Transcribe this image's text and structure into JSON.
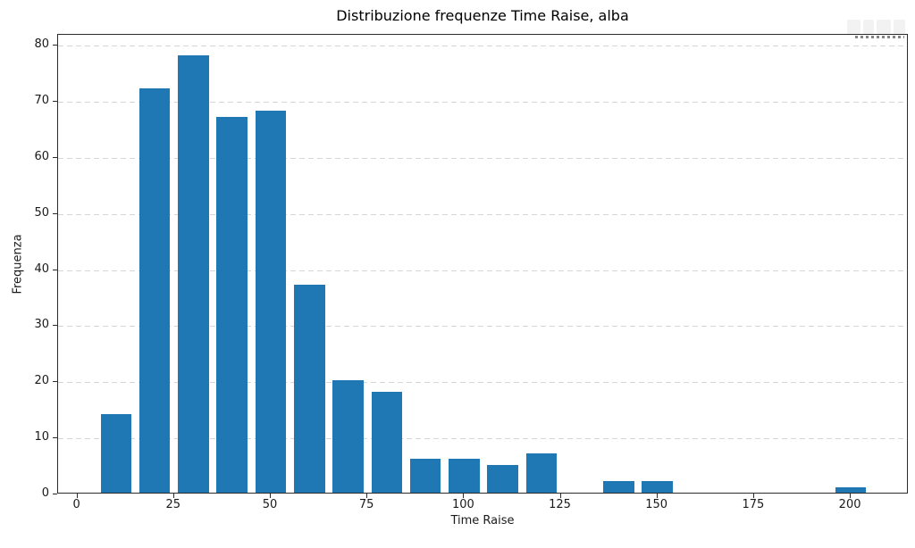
{
  "chart_data": {
    "type": "bar",
    "subtype": "histogram",
    "title": "Distribuzione frequenze Time Raise, alba",
    "xlabel": "Time Raise",
    "ylabel": "Frequenza",
    "bin_centers": [
      10,
      20,
      30,
      40,
      50,
      60,
      70,
      80,
      90,
      100,
      110,
      120,
      130,
      140,
      150,
      160,
      170,
      180,
      190,
      200
    ],
    "bin_edges": [
      5,
      15,
      25,
      35,
      45,
      55,
      65,
      75,
      85,
      95,
      105,
      115,
      125,
      135,
      145,
      155,
      165,
      175,
      185,
      195,
      205
    ],
    "values": [
      14,
      72,
      78,
      67,
      68,
      37,
      20,
      18,
      6,
      6,
      5,
      7,
      0,
      2,
      2,
      0,
      0,
      0,
      0,
      1
    ],
    "bar_display_width": 8,
    "x_ticks": [
      0,
      25,
      50,
      75,
      100,
      125,
      150,
      175,
      200
    ],
    "y_ticks": [
      0,
      10,
      20,
      30,
      40,
      50,
      60,
      70,
      80
    ],
    "xlim": [
      -5,
      215
    ],
    "ylim": [
      0,
      81.9
    ],
    "grid": "horizontal-dashed",
    "legend": "none",
    "bar_color": "#1f77b4",
    "grid_color": "#d6d6d6",
    "spine_color": "#2b2b2b",
    "background_color": "#ffffff"
  }
}
